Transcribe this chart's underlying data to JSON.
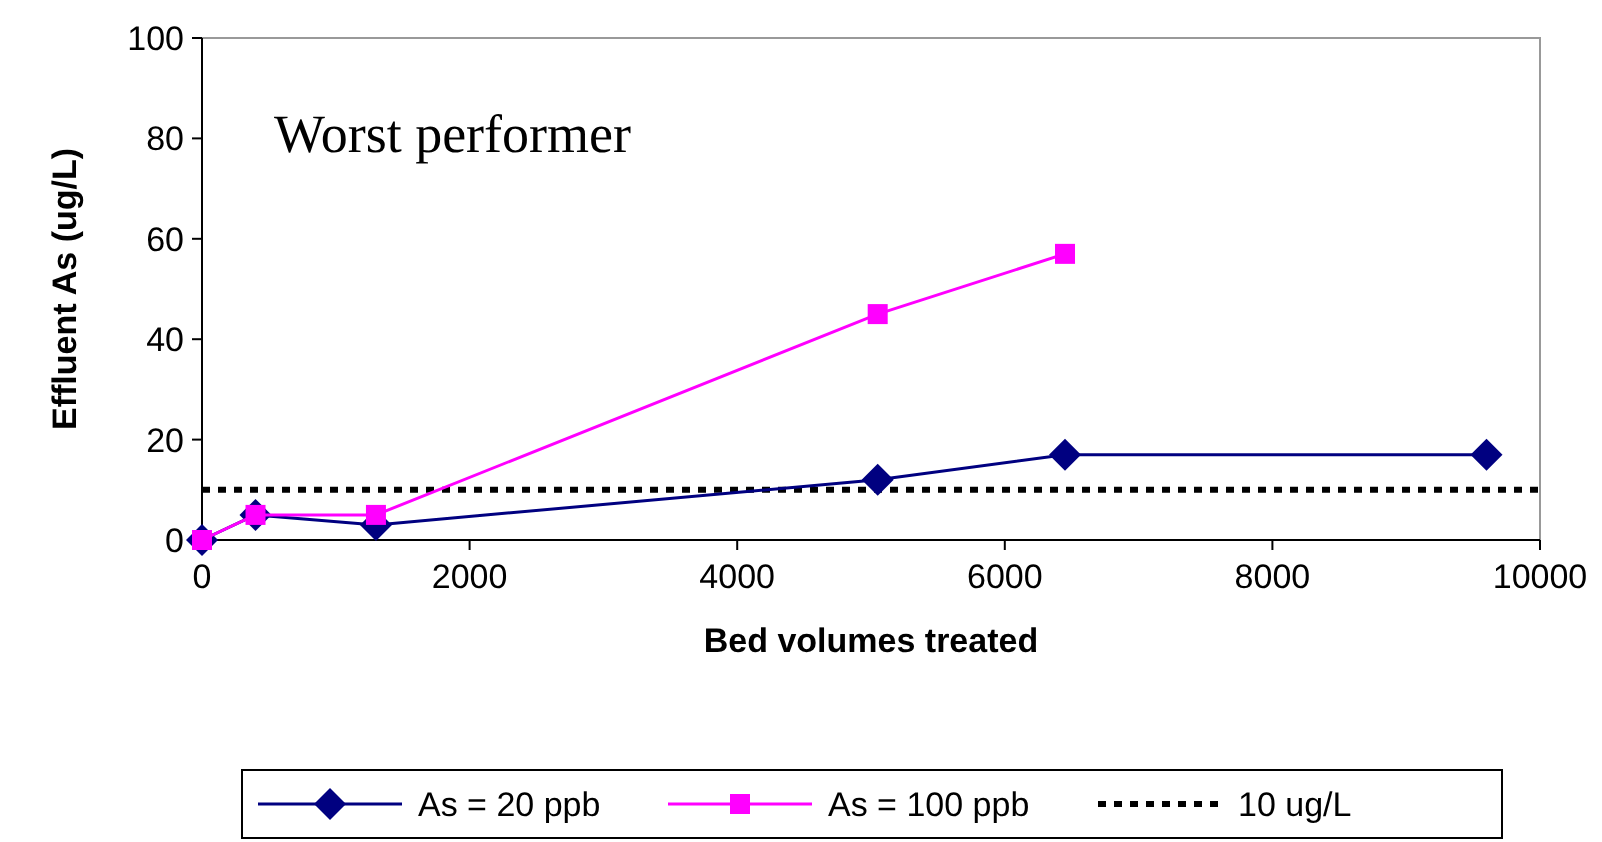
{
  "chart_data": {
    "type": "line",
    "xlabel": "Bed volumes treated",
    "ylabel": "Effluent As (ug/L)",
    "annotations": [
      "Worst performer"
    ],
    "xlim": [
      0,
      10000
    ],
    "xticks": [
      0,
      2000,
      4000,
      6000,
      8000,
      10000
    ],
    "ylim": [
      0,
      100
    ],
    "yticks": [
      0,
      20,
      40,
      60,
      80,
      100
    ],
    "grid": false,
    "legend": "bottom",
    "line_style": "solid",
    "series": [
      {
        "name": "As = 20 ppb",
        "color": "#000080",
        "marker": "diamond",
        "x": [
          0,
          400,
          1300,
          5050,
          6450,
          9600
        ],
        "values": [
          0,
          5,
          3,
          12,
          17,
          17
        ]
      },
      {
        "name": "As = 100 ppb",
        "color": "#ff00ff",
        "marker": "square",
        "x": [
          0,
          400,
          1300,
          5050,
          6450
        ],
        "values": [
          0,
          5,
          5,
          45,
          57
        ]
      }
    ],
    "ref_lines": [
      {
        "axis": "y",
        "value": 10,
        "label": "10 ug/L",
        "color": "#000000",
        "line_style": "dotted"
      }
    ]
  }
}
